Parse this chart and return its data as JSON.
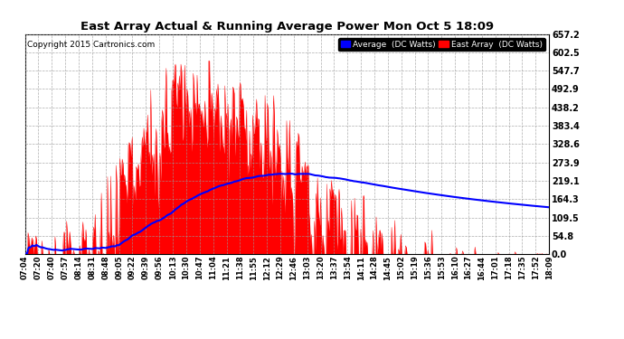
{
  "title": "East Array Actual & Running Average Power Mon Oct 5 18:09",
  "copyright": "Copyright 2015 Cartronics.com",
  "yticks": [
    0.0,
    54.8,
    109.5,
    164.3,
    219.1,
    273.9,
    328.6,
    383.4,
    438.2,
    492.9,
    547.7,
    602.5,
    657.2
  ],
  "ymax": 657.2,
  "ymin": 0.0,
  "legend_avg": "Average  (DC Watts)",
  "legend_east": "East Array  (DC Watts)",
  "bg_color": "#ffffff",
  "plot_bg_color": "#ffffff",
  "grid_color": "#999999",
  "fill_color": "#ff0000",
  "line_color": "#0000ff",
  "xtick_labels": [
    "07:04",
    "07:20",
    "07:40",
    "07:57",
    "08:14",
    "08:31",
    "08:48",
    "09:05",
    "09:22",
    "09:39",
    "09:56",
    "10:13",
    "10:30",
    "10:47",
    "11:04",
    "11:21",
    "11:38",
    "11:55",
    "12:12",
    "12:29",
    "12:46",
    "13:03",
    "13:20",
    "13:37",
    "13:54",
    "14:11",
    "14:28",
    "14:45",
    "15:02",
    "15:19",
    "15:36",
    "15:53",
    "16:10",
    "16:27",
    "16:44",
    "17:01",
    "17:18",
    "17:35",
    "17:52",
    "18:09"
  ]
}
